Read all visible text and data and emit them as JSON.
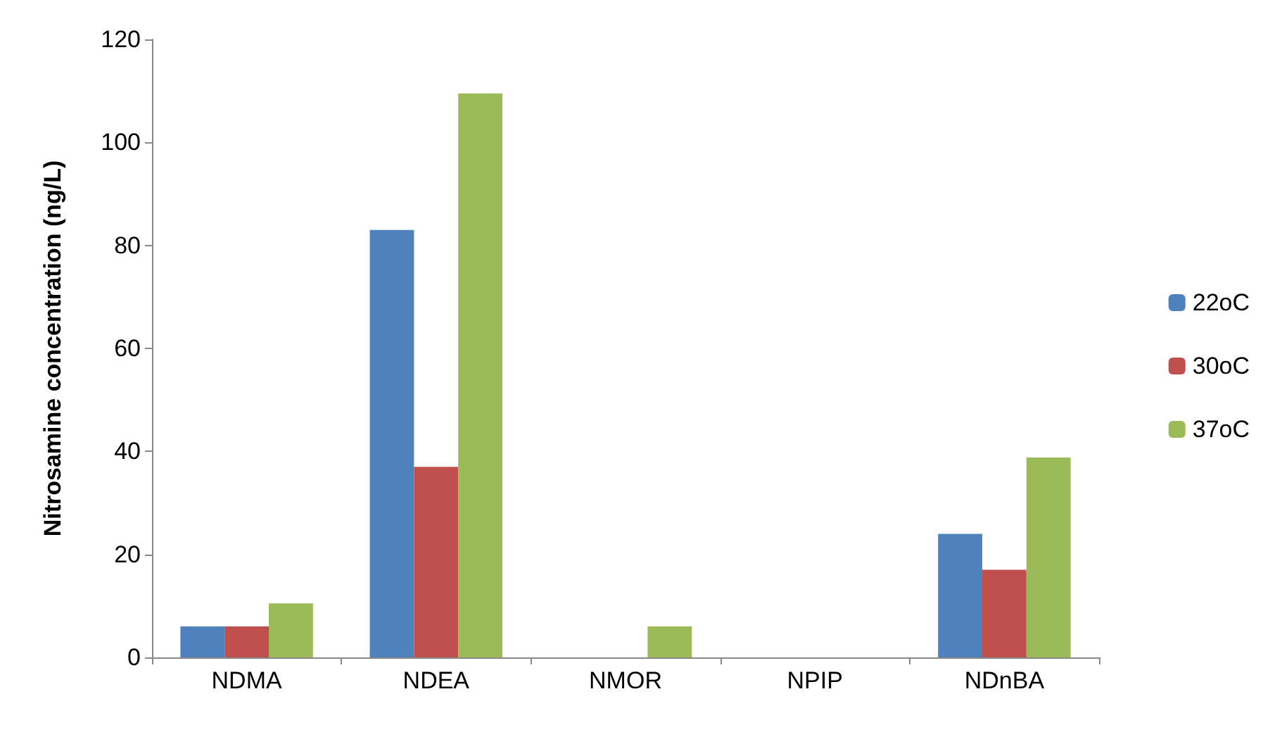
{
  "chart_data": {
    "type": "bar",
    "ylabel": "Nitrosamine concentration (ng/L)",
    "categories": [
      "NDMA",
      "NDEA",
      "NMOR",
      "NPIP",
      "NDnBA"
    ],
    "series": [
      {
        "name": "22oC",
        "color": "#4f81bd",
        "values": [
          6,
          83,
          0,
          0,
          24
        ]
      },
      {
        "name": "30oC",
        "color": "#c0504d",
        "values": [
          6,
          37,
          0,
          0,
          17
        ]
      },
      {
        "name": "37oC",
        "color": "#9bbb59",
        "values": [
          10.5,
          109.5,
          6,
          0,
          38.8
        ]
      }
    ],
    "ylim": [
      0,
      120
    ],
    "yticks": [
      0,
      20,
      40,
      60,
      80,
      100,
      120
    ],
    "grid": false,
    "legend": "right"
  }
}
